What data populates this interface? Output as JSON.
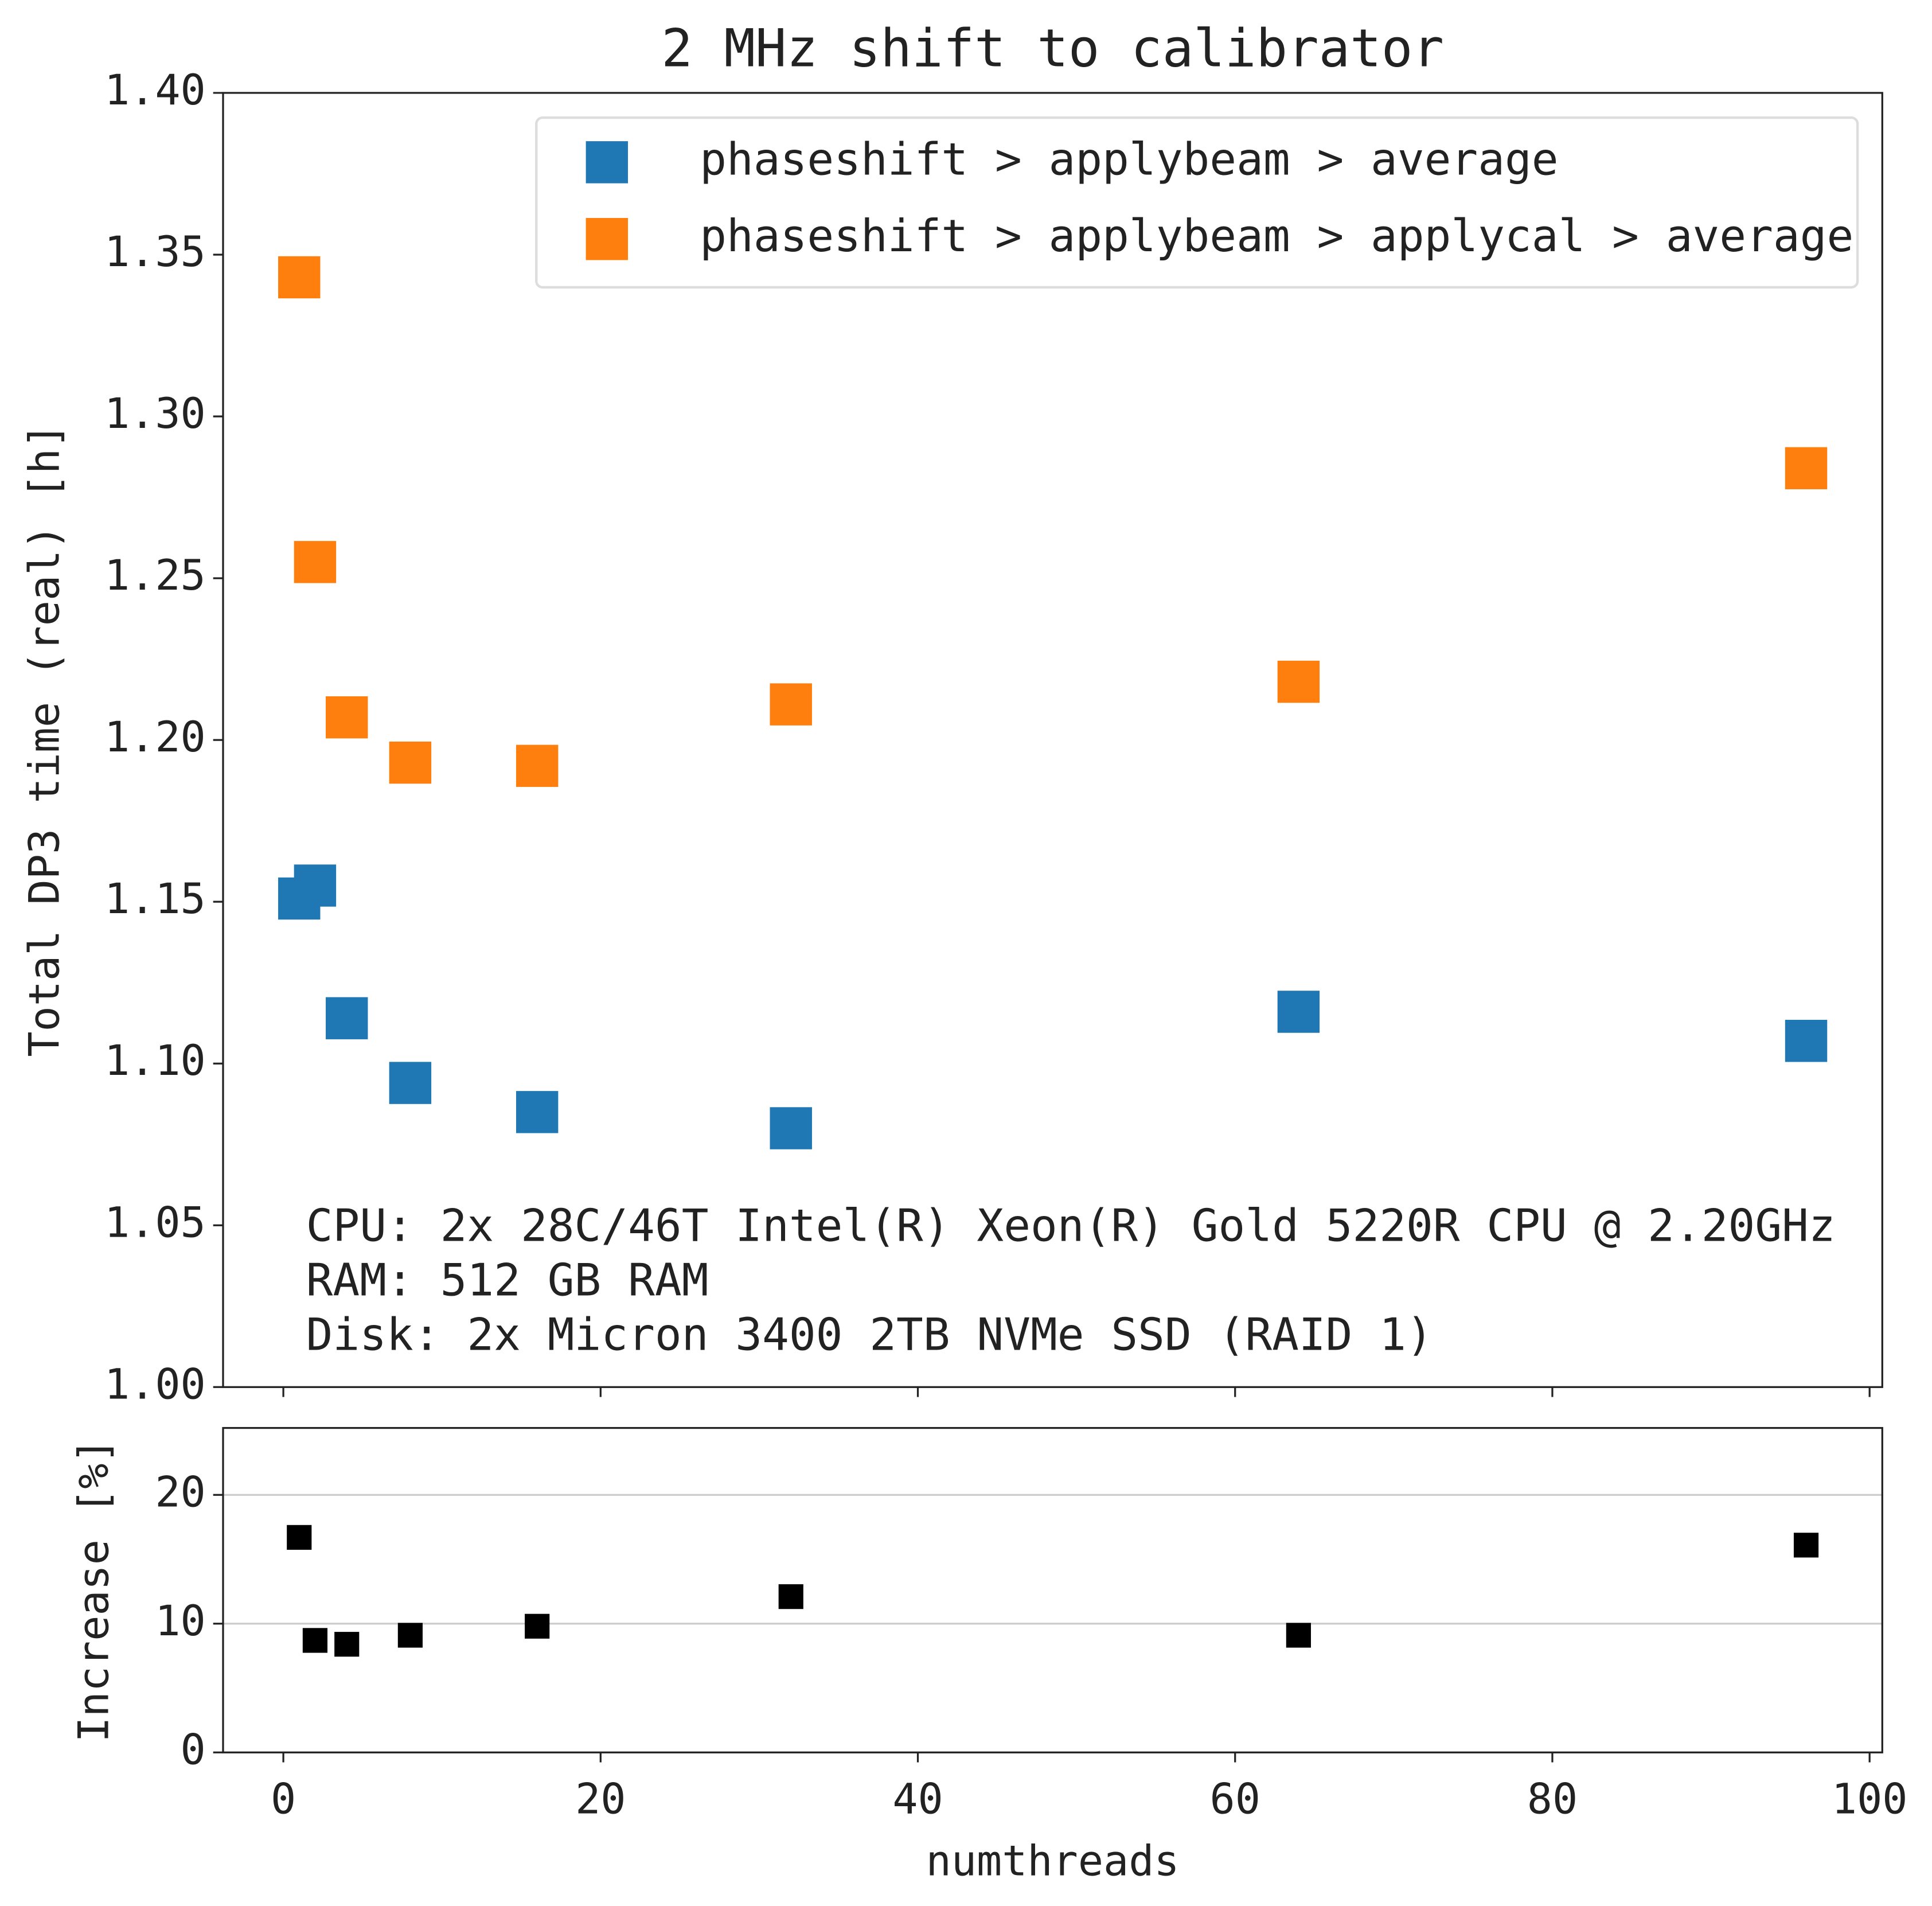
{
  "chart_data": [
    {
      "type": "scatter",
      "title": "2 MHz shift to calibrator",
      "y_label": "Total DP3 time (real) [h]",
      "x": [
        1,
        2,
        4,
        8,
        16,
        32,
        64,
        96
      ],
      "series": [
        {
          "name": "phaseshift > applybeam > average",
          "color": "#1f77b4",
          "values": [
            1.151,
            1.155,
            1.114,
            1.094,
            1.085,
            1.08,
            1.116,
            1.107
          ]
        },
        {
          "name": "phaseshift > applybeam > applycal > average",
          "color": "#ff7f0e",
          "values": [
            1.343,
            1.255,
            1.207,
            1.193,
            1.192,
            1.211,
            1.218,
            1.284
          ]
        }
      ],
      "xlim": [
        -3.8,
        100.8
      ],
      "xticks": [
        0,
        20,
        40,
        60,
        80,
        100
      ],
      "ylim": [
        1.0,
        1.4
      ],
      "yticks": [
        {
          "value": 1.0,
          "label": "1.00"
        },
        1.05,
        {
          "value": 1.1,
          "label": "1.10"
        },
        1.15,
        {
          "value": 1.2,
          "label": "1.20"
        },
        1.25,
        {
          "value": 1.3,
          "label": "1.30"
        },
        1.35,
        {
          "value": 1.4,
          "label": "1.40"
        }
      ],
      "grid": false,
      "legend": "upper right",
      "annotations": [
        "CPU: 2x 28C/46T Intel(R) Xeon(R) Gold 5220R CPU @ 2.20GHz",
        "RAM: 512 GB RAM",
        "Disk: 2x Micron 3400 2TB NVMe SSD (RAID 1)"
      ]
    },
    {
      "type": "scatter",
      "x_label": "numthreads",
      "y_label": "Increase [%]",
      "x": [
        1,
        2,
        4,
        8,
        16,
        32,
        64,
        96
      ],
      "series": [
        {
          "color": "#000000",
          "values": [
            16.7,
            8.7,
            8.4,
            9.1,
            9.8,
            12.1,
            9.1,
            16.1
          ]
        }
      ],
      "xlim": [
        -3.8,
        100.8
      ],
      "xticks": [
        0,
        20,
        40,
        60,
        80,
        100
      ],
      "ylim": [
        0,
        25.2
      ],
      "yticks": [
        0,
        10,
        20
      ],
      "grid": true
    }
  ]
}
